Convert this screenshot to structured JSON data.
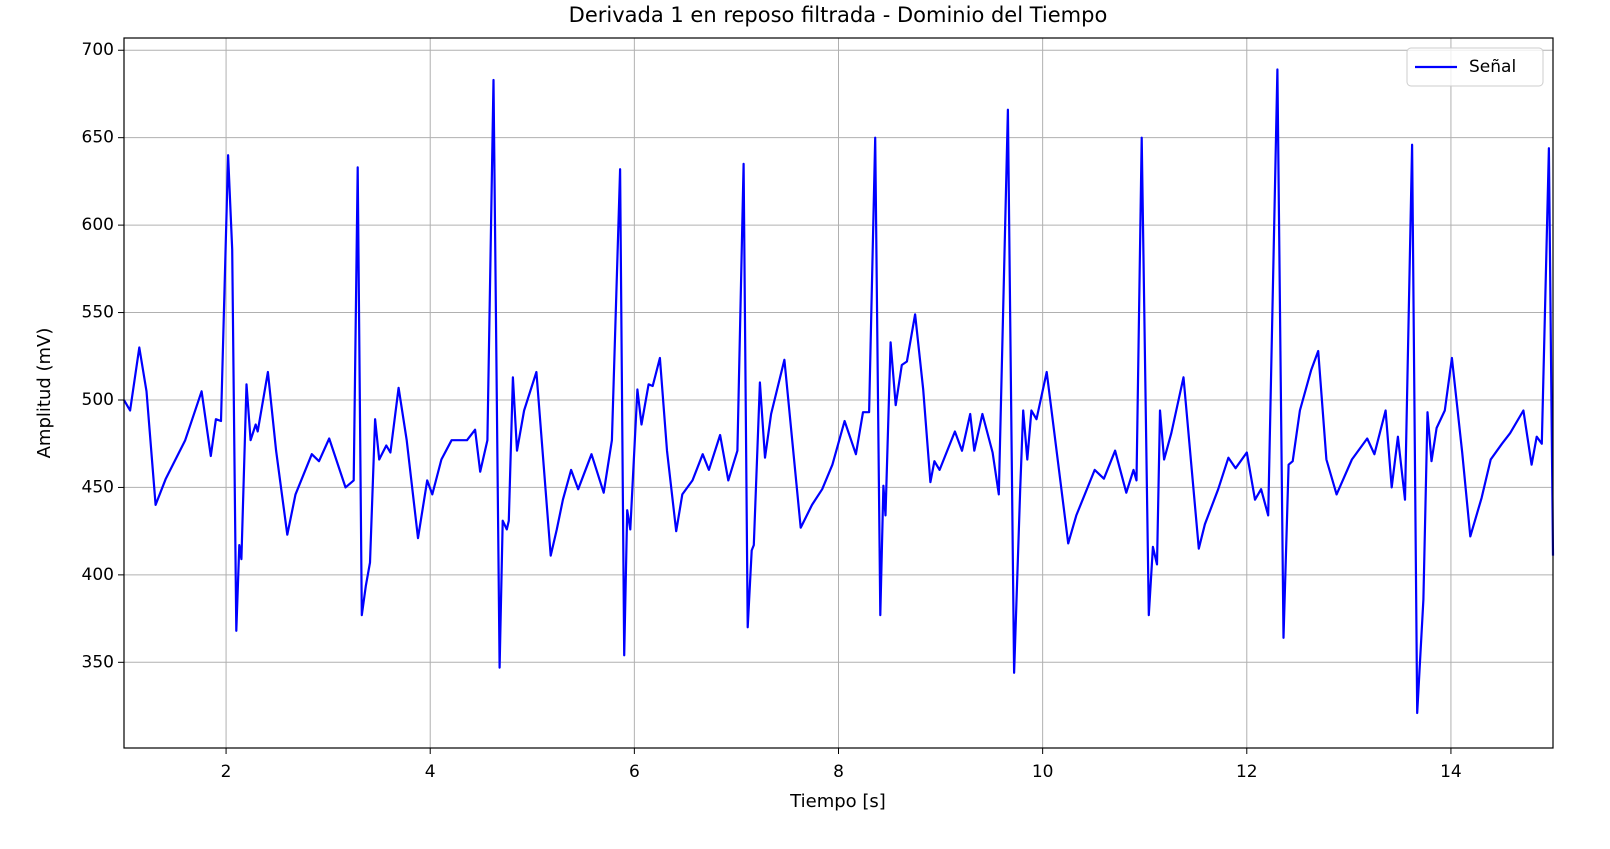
{
  "chart_data": {
    "type": "line",
    "title": "Derivada 1 en reposo filtrada - Dominio del Tiempo",
    "xlabel": "Tiempo [s]",
    "ylabel": "Amplitud (mV)",
    "x": [
      1.0,
      1.06,
      1.15,
      1.22,
      1.31,
      1.41,
      1.6,
      1.76,
      1.85,
      1.9,
      1.95,
      2.02,
      2.06,
      2.1,
      2.13,
      2.15,
      2.2,
      2.24,
      2.29,
      2.31,
      2.41,
      2.49,
      2.6,
      2.68,
      2.84,
      2.91,
      3.01,
      3.17,
      3.25,
      3.29,
      3.33,
      3.37,
      3.41,
      3.46,
      3.5,
      3.57,
      3.61,
      3.69,
      3.77,
      3.88,
      3.97,
      4.02,
      4.11,
      4.21,
      4.36,
      4.44,
      4.49,
      4.56,
      4.62,
      4.68,
      4.71,
      4.75,
      4.77,
      4.81,
      4.85,
      4.92,
      5.04,
      5.18,
      5.24,
      5.3,
      5.38,
      5.45,
      5.58,
      5.7,
      5.78,
      5.86,
      5.9,
      5.93,
      5.96,
      6.03,
      6.07,
      6.14,
      6.18,
      6.25,
      6.32,
      6.41,
      6.47,
      6.57,
      6.67,
      6.73,
      6.84,
      6.92,
      7.01,
      7.07,
      7.11,
      7.15,
      7.17,
      7.23,
      7.28,
      7.34,
      7.47,
      7.63,
      7.74,
      7.84,
      7.94,
      8.06,
      8.17,
      8.24,
      8.3,
      8.36,
      8.41,
      8.44,
      8.46,
      8.51,
      8.56,
      8.62,
      8.67,
      8.75,
      8.83,
      8.9,
      8.94,
      8.99,
      9.14,
      9.21,
      9.29,
      9.33,
      9.41,
      9.51,
      9.57,
      9.66,
      9.72,
      9.78,
      9.81,
      9.85,
      9.89,
      9.94,
      10.04,
      10.25,
      10.33,
      10.51,
      10.6,
      10.71,
      10.82,
      10.89,
      10.92,
      10.97,
      11.04,
      11.08,
      11.12,
      11.15,
      11.19,
      11.26,
      11.38,
      11.53,
      11.59,
      11.72,
      11.82,
      11.89,
      12.0,
      12.08,
      12.14,
      12.21,
      12.3,
      12.36,
      12.41,
      12.45,
      12.52,
      12.63,
      12.7,
      12.78,
      12.88,
      13.03,
      13.18,
      13.25,
      13.36,
      13.42,
      13.48,
      13.55,
      13.62,
      13.67,
      13.73,
      13.77,
      13.81,
      13.86,
      13.94,
      14.01,
      14.11,
      14.19,
      14.3,
      14.39,
      14.5,
      14.58,
      14.71,
      14.79,
      14.84,
      14.89,
      14.96,
      15.0
    ],
    "series": [
      {
        "name": "Señal",
        "color": "#0000ff",
        "values": [
          500,
          494,
          530,
          505,
          440,
          455,
          477,
          505,
          468,
          489,
          488,
          640,
          586,
          368,
          417,
          409,
          509,
          477,
          486,
          482,
          516,
          471,
          423,
          446,
          469,
          465,
          478,
          450,
          454,
          633,
          377,
          394,
          407,
          489,
          466,
          474,
          470,
          507,
          477,
          421,
          454,
          446,
          466,
          477,
          477,
          483,
          459,
          477,
          683,
          347,
          431,
          426,
          431,
          513,
          471,
          494,
          516,
          411,
          426,
          443,
          460,
          449,
          469,
          447,
          477,
          632,
          354,
          437,
          426,
          506,
          486,
          509,
          508,
          524,
          471,
          425,
          446,
          454,
          469,
          460,
          480,
          454,
          471,
          635,
          370,
          414,
          417,
          510,
          467,
          492,
          523,
          427,
          440,
          449,
          463,
          488,
          469,
          493,
          493,
          650,
          377,
          451,
          434,
          533,
          497,
          520,
          522,
          549,
          506,
          453,
          465,
          460,
          482,
          471,
          492,
          471,
          492,
          470,
          446,
          666,
          344,
          449,
          494,
          466,
          494,
          489,
          516,
          418,
          434,
          460,
          455,
          471,
          447,
          460,
          454,
          650,
          377,
          416,
          406,
          494,
          466,
          481,
          513,
          415,
          429,
          449,
          467,
          461,
          470,
          443,
          449,
          434,
          689,
          364,
          463,
          465,
          494,
          517,
          528,
          466,
          446,
          466,
          478,
          469,
          494,
          450,
          479,
          443,
          646,
          321,
          386,
          493,
          465,
          484,
          494,
          524,
          470,
          422,
          444,
          466,
          475,
          481,
          494,
          463,
          479,
          475,
          644,
          411
        ]
      }
    ],
    "xlim": [
      1,
      15
    ],
    "ylim": [
      301,
      707
    ],
    "xticks": [
      2,
      4,
      6,
      8,
      10,
      12,
      14
    ],
    "yticks": [
      350,
      400,
      450,
      500,
      550,
      600,
      650,
      700
    ],
    "grid": true,
    "legend": "upper right"
  }
}
